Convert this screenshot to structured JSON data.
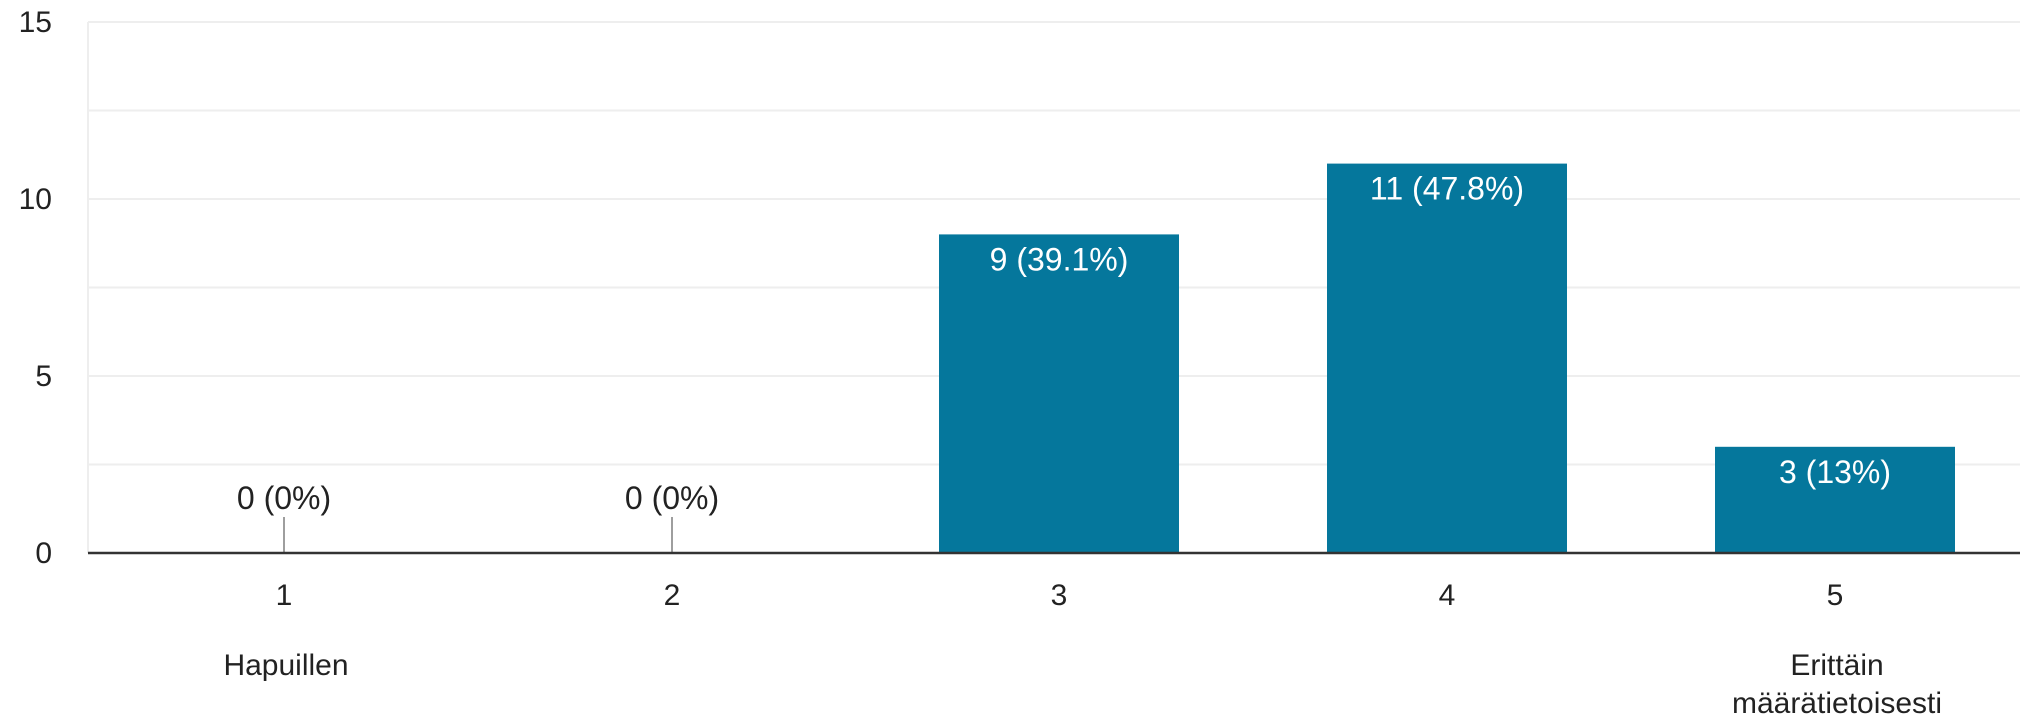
{
  "chart_data": {
    "type": "bar",
    "categories": [
      "1",
      "2",
      "3",
      "4",
      "5"
    ],
    "values": [
      0,
      0,
      9,
      11,
      3
    ],
    "data_labels": [
      "0 (0%)",
      "0 (0%)",
      "9 (39.1%)",
      "11 (47.8%)",
      "3 (13%)"
    ],
    "category_sublabels": [
      "Hapuillen",
      "",
      "",
      "",
      "Erittäin määrätietoisesti"
    ],
    "yticks": [
      "0",
      "5",
      "10",
      "15"
    ],
    "ylim": [
      0,
      15
    ],
    "grid": true,
    "title": "",
    "xlabel": "",
    "ylabel": ""
  },
  "colors": {
    "bar": "#05779C",
    "grid": "#EEEEEE",
    "axis": "#333333",
    "tick_text": "#222222",
    "label_on_bar": "#FFFFFF",
    "label_above": "#222222",
    "zero_marker": "#9E9E9E"
  }
}
